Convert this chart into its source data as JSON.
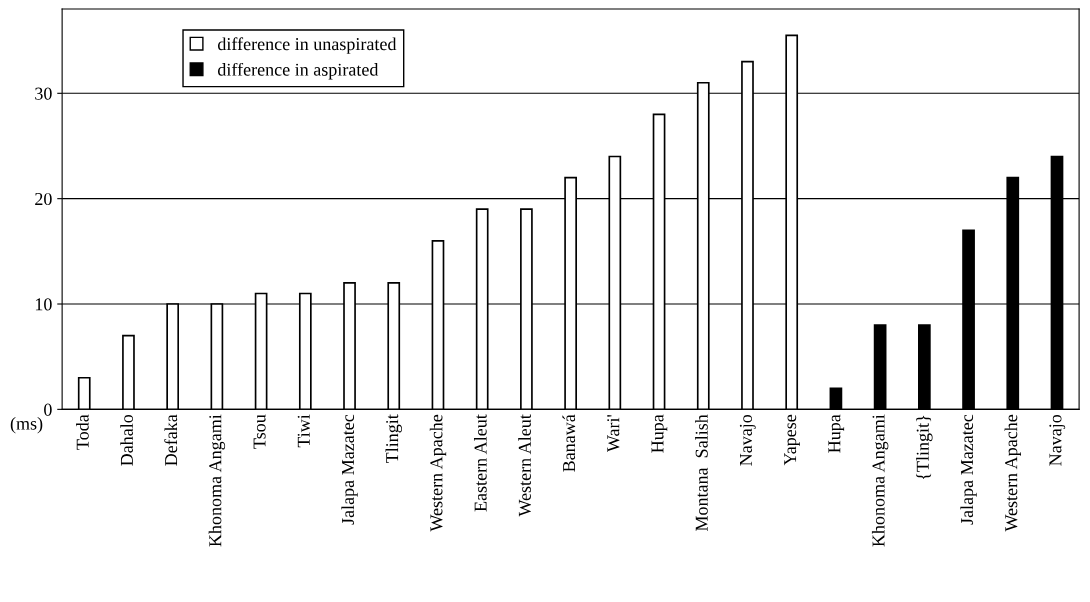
{
  "chart_data": {
    "type": "bar",
    "ylabel": "(ms)",
    "categories": [
      "Toda",
      "Dahalo",
      "Defaka",
      "Khonoma Angami",
      "Tsou",
      "Tiwi",
      "Jalapa Mazatec",
      "Tlingit",
      "Western Apache",
      "Eastern Aleut",
      "Western Aleut",
      "Banawá",
      "Wari'",
      "Hupa",
      "Montana  Salish",
      "Navajo",
      "Yapese",
      "Hupa",
      "Khonoma Angami",
      "{Tlingit}",
      "Jalapa Mazatec",
      "Western Apache",
      "Navajo"
    ],
    "series": [
      {
        "name": "difference in unaspirated",
        "color": "#ffffff",
        "values": [
          3,
          7,
          10,
          10,
          11,
          11,
          12,
          12,
          16,
          19,
          19,
          22,
          24,
          28,
          31,
          33,
          35.5,
          null,
          null,
          null,
          null,
          null,
          null
        ]
      },
      {
        "name": "difference in aspirated",
        "color": "#000000",
        "values": [
          null,
          null,
          null,
          null,
          null,
          null,
          null,
          null,
          null,
          null,
          null,
          null,
          null,
          null,
          null,
          null,
          null,
          2,
          8,
          8,
          17,
          22,
          24
        ]
      }
    ],
    "ylim": [
      0,
      38
    ],
    "yticks": [
      0,
      10,
      20,
      30
    ],
    "grid": "y",
    "legend": "top left"
  }
}
